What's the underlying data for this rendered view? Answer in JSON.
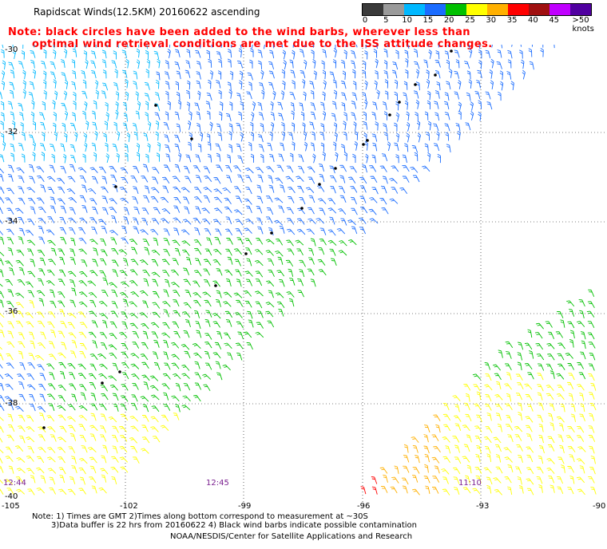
{
  "title": "Rapidscat Winds(12.5KM) 20160622 ascending",
  "note_line1": "Note: black circles have been added to the wind barbs, wherever less than",
  "note_line2": "optimal wind retrieval conditions are met due to the ISS attitude changes.",
  "colorbar": {
    "unit_label": ">50 knots",
    "ticks": [
      "0",
      "5",
      "10",
      "15",
      "20",
      "25",
      "30",
      "35",
      "40",
      "45"
    ],
    "colors": [
      "#3a3a3a",
      "#9a9a9a",
      "#00b8ff",
      "#1a6cff",
      "#00c000",
      "#ffff00",
      "#ffb000",
      "#ff0000",
      "#a01010",
      "#c000ff",
      "#5000a0"
    ]
  },
  "latitude_labels": [
    "-30",
    "-32",
    "-34",
    "-36",
    "-38",
    "-40"
  ],
  "longitude_labels": [
    "-105",
    "-102",
    "-99",
    "-96",
    "-93",
    "-90"
  ],
  "time_labels": [
    "12:44",
    "12:45",
    "11:10"
  ],
  "footnote_line1": "Note: 1) Times are GMT 2)Times along bottom correspond to measurement at ~30S",
  "footnote_line2": "3)Data buffer is 22 hrs from 20160622 4) Black wind barbs indicate possible contamination",
  "credit": "NOAA/NESDIS/Center for Satellite Applications and Research"
}
